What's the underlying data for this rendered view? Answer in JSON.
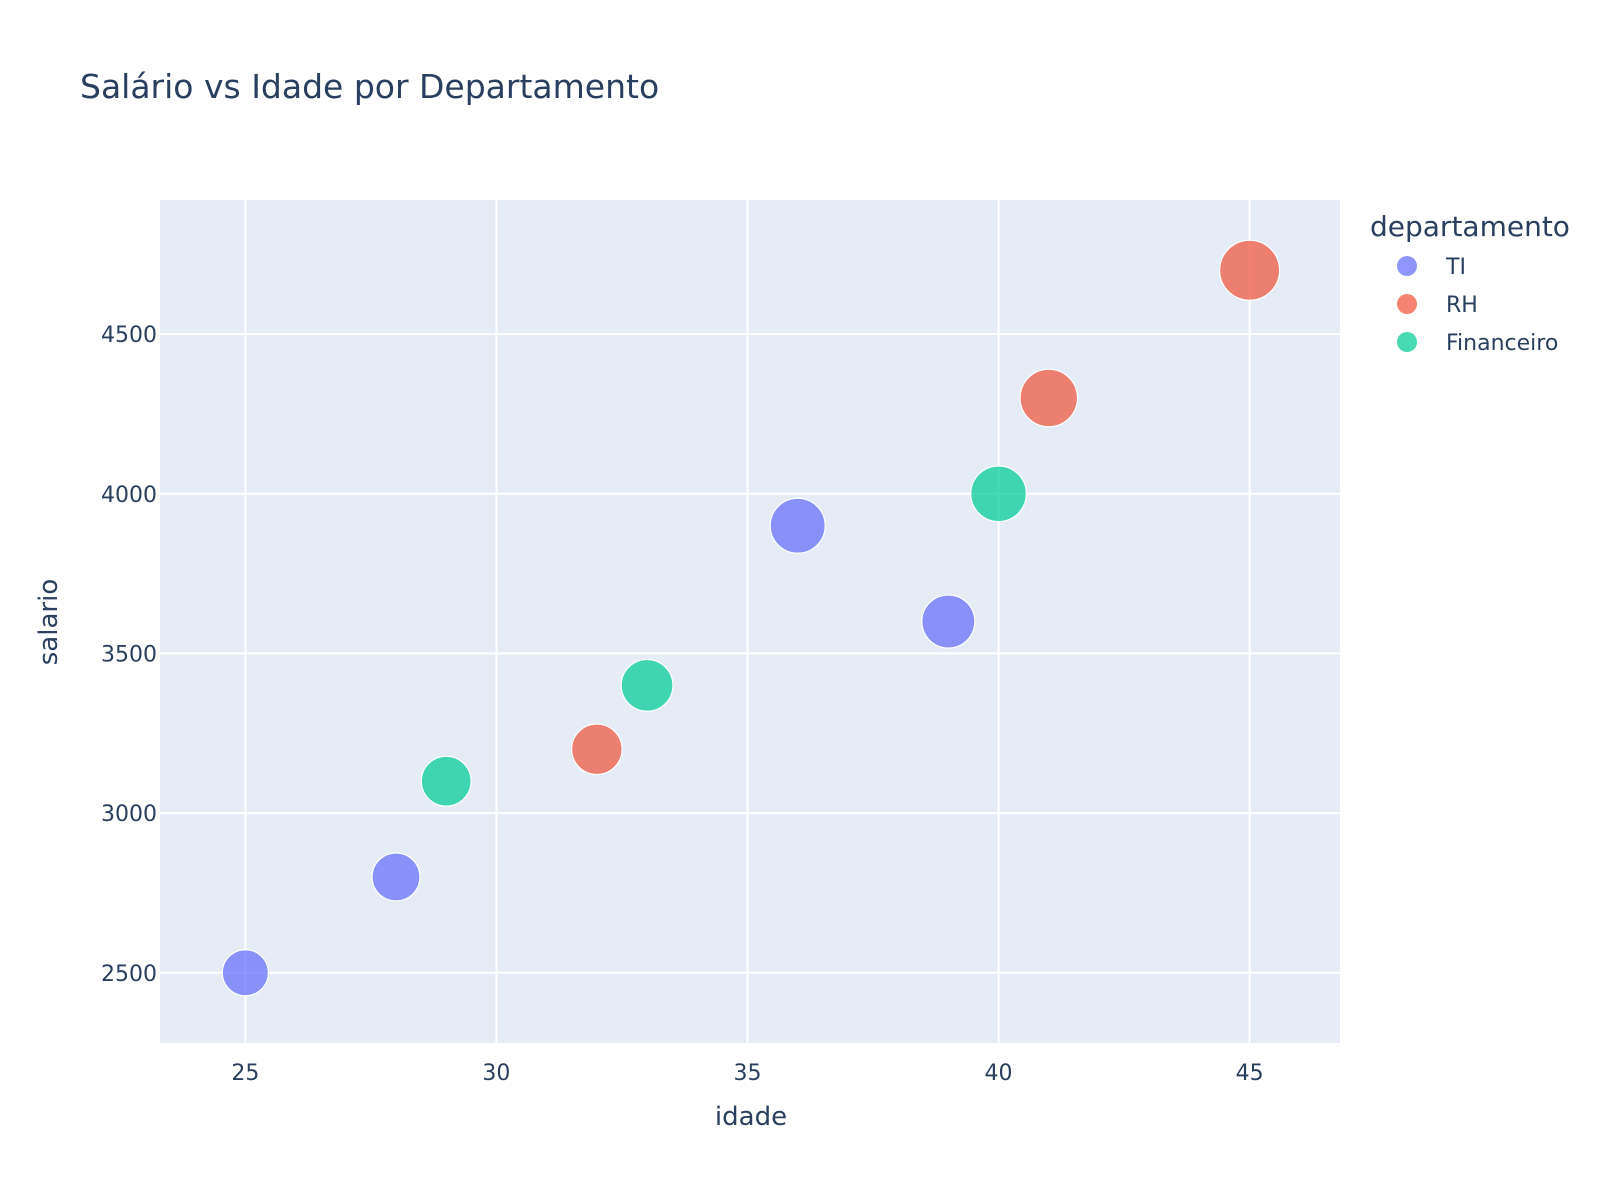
{
  "chart_data": {
    "type": "scatter",
    "title": "Salário vs Idade por Departamento",
    "xlabel": "idade",
    "ylabel": "salario",
    "xlim": [
      23.3,
      46.8
    ],
    "ylim": [
      2280,
      4920
    ],
    "x_ticks": [
      25,
      30,
      35,
      40,
      45
    ],
    "y_ticks": [
      2500,
      3000,
      3500,
      4000,
      4500
    ],
    "grid": true,
    "legend": {
      "title": "departamento",
      "placement": "right"
    },
    "colors": {
      "plot_bg": "#e5ecf6",
      "grid": "#ffffff",
      "text": "#2a3f5f"
    },
    "series": [
      {
        "name": "TI",
        "color": "#636efa",
        "points": [
          {
            "x": 25,
            "y": 2500
          },
          {
            "x": 28,
            "y": 2800
          },
          {
            "x": 36,
            "y": 3900
          },
          {
            "x": 39,
            "y": 3600
          }
        ]
      },
      {
        "name": "RH",
        "color": "#ef553b",
        "points": [
          {
            "x": 32,
            "y": 3200
          },
          {
            "x": 41,
            "y": 4300
          },
          {
            "x": 45,
            "y": 4700
          }
        ]
      },
      {
        "name": "Financeiro",
        "color": "#00cc96",
        "points": [
          {
            "x": 29,
            "y": 3100
          },
          {
            "x": 33,
            "y": 3400
          },
          {
            "x": 40,
            "y": 4000
          }
        ]
      }
    ]
  }
}
